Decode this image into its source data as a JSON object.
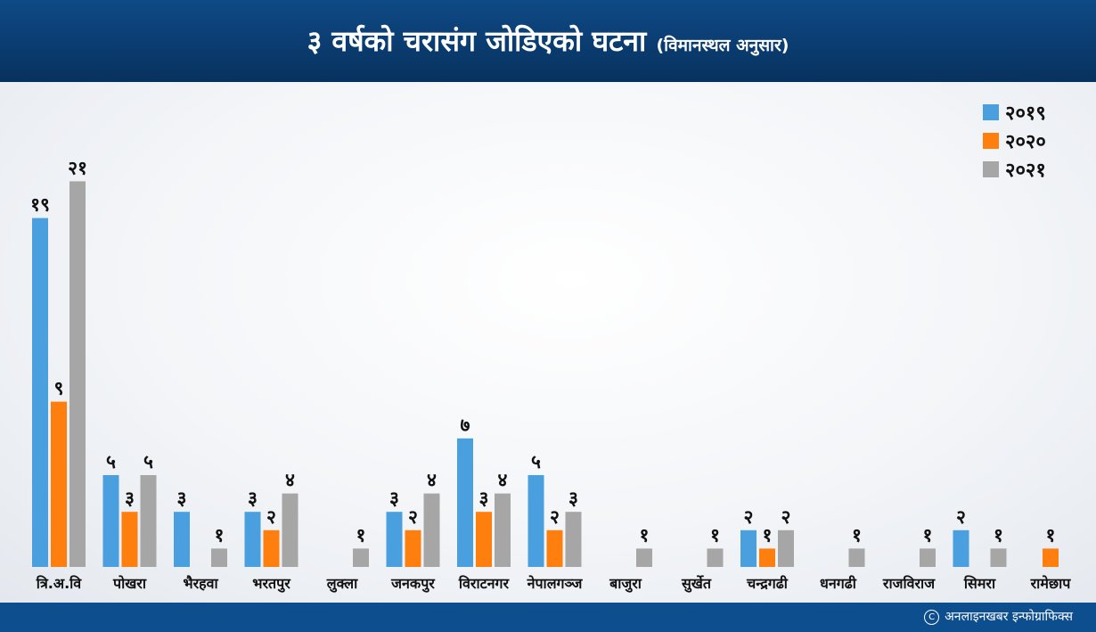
{
  "title": "३ वर्षको चरासंग जोडिएको घटना",
  "subtitle": "(विमानस्थल अनुसार)",
  "credit": "अनलाइनखबर इन्फोग्राफिक्स",
  "chart_data": {
    "type": "bar",
    "categories": [
      "त्रि.अ.वि",
      "पोखरा",
      "भैरहवा",
      "भरतपुर",
      "लुक्ला",
      "जनकपुर",
      "विराटनगर",
      "नेपालगञ्ज",
      "बाजुरा",
      "सुर्खेत",
      "चन्द्रगढी",
      "धनगढी",
      "राजविराज",
      "सिमरा",
      "रामेछाप"
    ],
    "series": [
      {
        "name": "२०१९",
        "color": "#4aa0de",
        "values": [
          19,
          5,
          3,
          3,
          0,
          3,
          7,
          5,
          0,
          0,
          2,
          0,
          0,
          2,
          0
        ],
        "labels": [
          "१९",
          "५",
          "३",
          "३",
          "",
          "३",
          "७",
          "५",
          "",
          "",
          "२",
          "",
          "",
          "२",
          ""
        ]
      },
      {
        "name": "२०२०",
        "color": "#ff7f0e",
        "values": [
          9,
          3,
          0,
          2,
          0,
          2,
          3,
          2,
          0,
          0,
          1,
          0,
          0,
          0,
          1
        ],
        "labels": [
          "९",
          "३",
          "",
          "२",
          "",
          "२",
          "३",
          "२",
          "",
          "",
          "१",
          "",
          "",
          "",
          "१"
        ]
      },
      {
        "name": "२०२१",
        "color": "#a6a6a6",
        "values": [
          21,
          5,
          1,
          4,
          1,
          4,
          4,
          3,
          1,
          1,
          2,
          1,
          1,
          1,
          0
        ],
        "labels": [
          "२१",
          "५",
          "१",
          "४",
          "१",
          "४",
          "४",
          "३",
          "१",
          "१",
          "२",
          "१",
          "१",
          "१",
          ""
        ]
      }
    ],
    "ylim": [
      0,
      21
    ],
    "legend_position": "top-right",
    "grid": false
  }
}
